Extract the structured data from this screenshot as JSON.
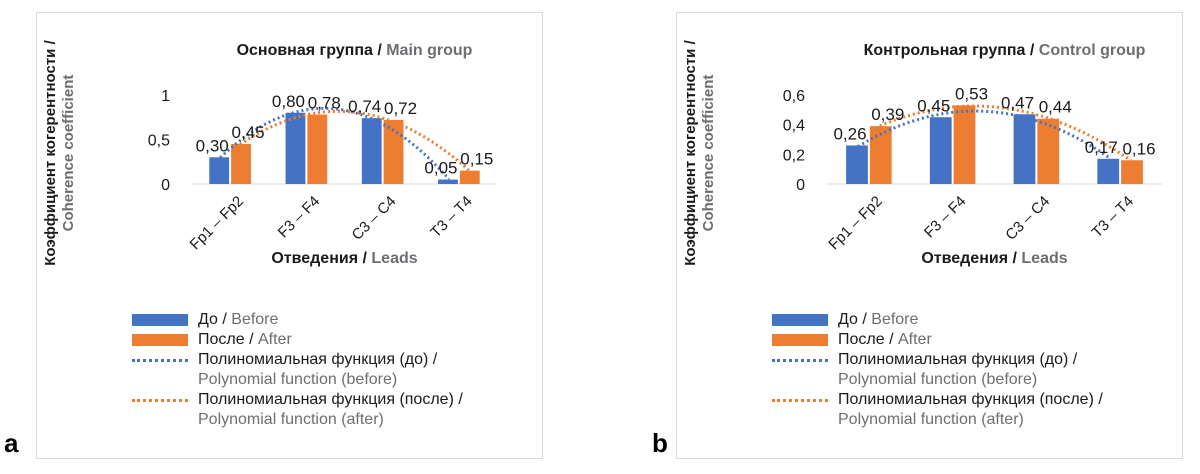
{
  "panels": [
    {
      "letter": "a",
      "title_ru": "Основная группа",
      "title_sep": " / ",
      "title_en": "Main group",
      "ylabel_ru": "Коэффициент когерентности /",
      "ylabel_en": "Coherence coefficient",
      "xlabel_ru": "Отведения",
      "xlabel_sep": " / ",
      "xlabel_en": "Leads",
      "legend": {
        "before_ru": "До",
        "before_en": "Before",
        "after_ru": "После",
        "after_en": "After",
        "poly_before_ru": "Полиномиальная функция (до) /",
        "poly_before_en": "Polynomial function (before)",
        "poly_after_ru": "Полиномиальная функция (после) /",
        "poly_after_en": "Polynomial function (after)",
        "sep": " / "
      }
    },
    {
      "letter": "b",
      "title_ru": "Контрольная группа",
      "title_sep": " / ",
      "title_en": "Control group",
      "ylabel_ru": "Коэффициент когерентности /",
      "ylabel_en": "Coherence coefficient",
      "xlabel_ru": "Отведения",
      "xlabel_sep": " / ",
      "xlabel_en": "Leads",
      "legend": {
        "before_ru": "До",
        "before_en": "Before",
        "after_ru": "После",
        "after_en": "After",
        "poly_before_ru": "Полиномиальная функция (до) /",
        "poly_before_en": "Polynomial function (before)",
        "poly_after_ru": "Полиномиальная функция (после) /",
        "poly_after_en": "Polynomial function (after)",
        "sep": " / "
      }
    }
  ],
  "colors": {
    "before": "#4472c4",
    "after": "#ed7d31",
    "axis": "#d9d9d9",
    "text": "#1a1a1a",
    "gray": "#6d6e71"
  },
  "chart_data": [
    {
      "type": "bar",
      "title": "Основная группа / Main group",
      "categories": [
        "Fp1 – Fp2",
        "F3 – F4",
        "C3 – C4",
        "T3 – T4"
      ],
      "series": [
        {
          "name": "До / Before",
          "values": [
            0.3,
            0.8,
            0.74,
            0.05
          ],
          "labels": [
            "0,30",
            "0,80",
            "0,74",
            "0,05"
          ]
        },
        {
          "name": "После / After",
          "values": [
            0.45,
            0.78,
            0.72,
            0.15
          ],
          "labels": [
            "0,45",
            "0,78",
            "0,72",
            "0,15"
          ]
        }
      ],
      "trendlines": [
        "Полиномиальная функция (до) / Polynomial function (before)",
        "Полиномиальная функция (после) / Polynomial function (after)"
      ],
      "xlabel": "Отведения / Leads",
      "ylabel": "Коэффициент когерентности / Coherence coefficient",
      "ylim": [
        0,
        1
      ],
      "yticks": [
        0,
        0.5,
        1
      ],
      "ytick_labels": [
        "0",
        "0,5",
        "1"
      ],
      "grid": false,
      "legend": "bottom"
    },
    {
      "type": "bar",
      "title": "Контрольная группа / Control group",
      "categories": [
        "Fp1 – Fp2",
        "F3 – F4",
        "C3 – C4",
        "T3 – T4"
      ],
      "series": [
        {
          "name": "До / Before",
          "values": [
            0.26,
            0.45,
            0.47,
            0.17
          ],
          "labels": [
            "0,26",
            "0,45",
            "0,47",
            "0,17"
          ]
        },
        {
          "name": "После / After",
          "values": [
            0.39,
            0.53,
            0.44,
            0.16
          ],
          "labels": [
            "0,39",
            "0,53",
            "0,44",
            "0,16"
          ]
        }
      ],
      "trendlines": [
        "Полиномиальная функция (до) / Polynomial function (before)",
        "Полиномиальная функция (после) / Polynomial function (after)"
      ],
      "xlabel": "Отведения / Leads",
      "ylabel": "Коэффициент когерентности / Coherence coefficient",
      "ylim": [
        0,
        0.6
      ],
      "yticks": [
        0,
        0.2,
        0.4,
        0.6
      ],
      "ytick_labels": [
        "0",
        "0,2",
        "0,4",
        "0,6"
      ],
      "grid": false,
      "legend": "bottom"
    }
  ]
}
